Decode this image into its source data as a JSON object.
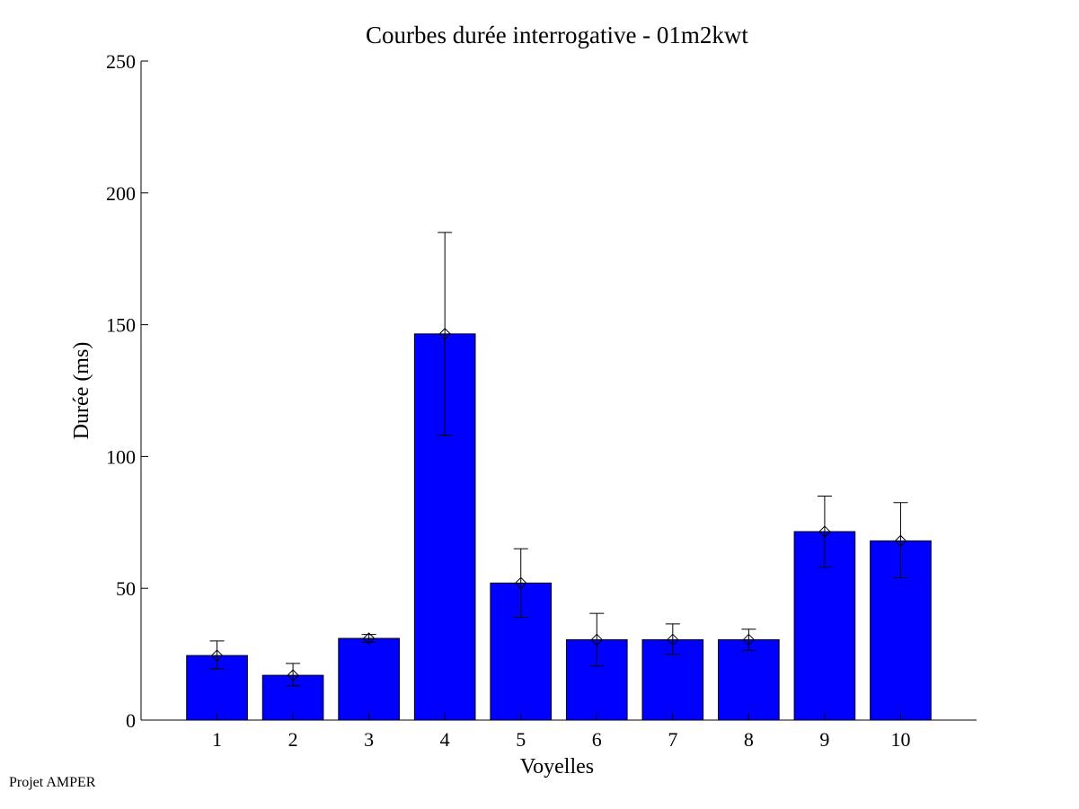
{
  "footer": "Projet AMPER",
  "colors": {
    "bar_fill": "#0000ff",
    "bar_stroke": "#000000",
    "axis": "#000000",
    "background": "#ffffff"
  },
  "chart_data": {
    "type": "bar",
    "title": "Courbes durée interrogative - 01m2kwt",
    "xlabel": "Voyelles",
    "ylabel": "Durée (ms)",
    "categories": [
      "1",
      "2",
      "3",
      "4",
      "5",
      "6",
      "7",
      "8",
      "9",
      "10"
    ],
    "values": [
      24.5,
      17,
      31,
      146.5,
      52,
      30.5,
      30.5,
      30.5,
      71.5,
      68
    ],
    "error_low": [
      19.5,
      13,
      29.5,
      108,
      39,
      20.5,
      25,
      26.5,
      58,
      54
    ],
    "error_high": [
      30,
      21.5,
      32.5,
      185,
      65,
      40.5,
      36.5,
      34.5,
      85,
      82.5
    ],
    "ylim": [
      0,
      250
    ],
    "yticks": [
      0,
      50,
      100,
      150,
      200,
      250
    ],
    "marker": "diamond",
    "grid": false,
    "legend": "none"
  }
}
